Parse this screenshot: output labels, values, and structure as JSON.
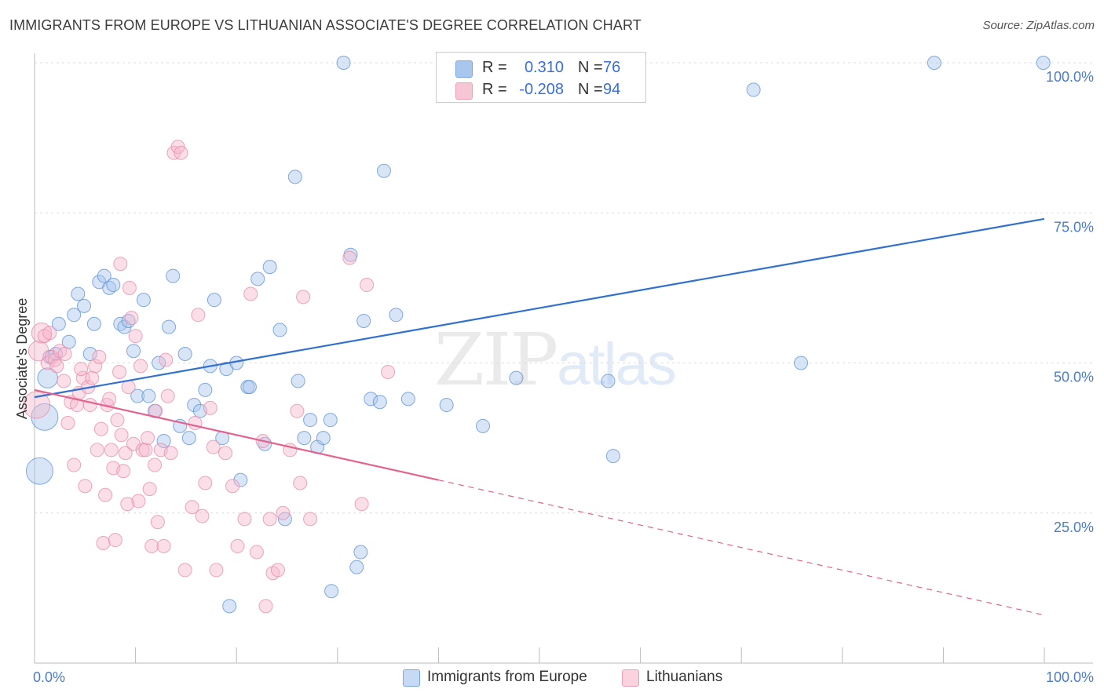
{
  "title": "IMMIGRANTS FROM EUROPE VS LITHUANIAN ASSOCIATE'S DEGREE CORRELATION CHART",
  "source": "Source: ZipAtlas.com",
  "watermark": {
    "zip": "ZIP",
    "atlas": "atlas"
  },
  "legend_top": [
    {
      "r_label": "R =",
      "r_value": "0.310",
      "n_label": "N =",
      "n_value": "76",
      "color": "#a8c6ee"
    },
    {
      "r_label": "R =",
      "r_value": "-0.208",
      "n_label": "N =",
      "n_value": "94",
      "color": "#f6b8cb"
    }
  ],
  "legend_bottom": [
    {
      "label": "Immigrants from Europe",
      "color": "#a8c6ee"
    },
    {
      "label": "Lithuanians",
      "color": "#f6b8cb"
    }
  ],
  "chart_data": {
    "type": "scatter",
    "title": "IMMIGRANTS FROM EUROPE VS LITHUANIAN ASSOCIATE'S DEGREE CORRELATION CHART",
    "xlabel": "",
    "ylabel": "Associate's Degree",
    "xlim": [
      0,
      100
    ],
    "ylim": [
      0,
      100
    ],
    "x_ticks": [
      "0.0%",
      "100.0%"
    ],
    "y_ticks": [
      {
        "value": 25,
        "label": "25.0%"
      },
      {
        "value": 50,
        "label": "50.0%"
      },
      {
        "value": 75,
        "label": "75.0%"
      },
      {
        "value": 100,
        "label": "100.0%"
      }
    ],
    "grid": true,
    "legend_position": "top-center",
    "series": [
      {
        "name": "Immigrants from Europe",
        "color": "#5b8fd6",
        "fill": "#a8c6ee",
        "trend": {
          "x": [
            0,
            100
          ],
          "y": [
            44.3,
            74.0
          ],
          "style": "solid",
          "color": "#3070cf"
        },
        "points": [
          [
            0.5,
            32,
            2
          ],
          [
            1.0,
            41,
            2
          ],
          [
            1.3,
            47.5,
            1.5
          ],
          [
            1.5,
            51,
            1
          ],
          [
            2.1,
            51.5,
            1
          ],
          [
            2.4,
            56.5,
            1
          ],
          [
            3.4,
            53.5,
            1
          ],
          [
            3.9,
            58,
            1
          ],
          [
            4.3,
            61.5,
            1
          ],
          [
            4.9,
            59.5,
            1
          ],
          [
            5.5,
            51.5,
            1
          ],
          [
            5.9,
            56.5,
            1
          ],
          [
            6.4,
            63.5,
            1
          ],
          [
            6.9,
            64.5,
            1
          ],
          [
            7.4,
            62.5,
            1
          ],
          [
            7.8,
            63,
            1
          ],
          [
            8.5,
            56.5,
            1
          ],
          [
            8.9,
            56,
            1
          ],
          [
            9.3,
            57,
            1
          ],
          [
            9.8,
            52,
            1
          ],
          [
            10.2,
            44.5,
            1
          ],
          [
            10.8,
            60.5,
            1
          ],
          [
            11.3,
            44.5,
            1
          ],
          [
            11.9,
            42,
            1
          ],
          [
            12.3,
            50,
            1
          ],
          [
            12.8,
            37,
            1
          ],
          [
            13.3,
            56,
            1
          ],
          [
            13.7,
            64.5,
            1
          ],
          [
            14.4,
            39.5,
            1
          ],
          [
            14.9,
            51.5,
            1
          ],
          [
            15.3,
            37.5,
            1
          ],
          [
            15.8,
            43,
            1
          ],
          [
            16.4,
            42,
            1
          ],
          [
            16.9,
            45.5,
            1
          ],
          [
            17.4,
            49.5,
            1
          ],
          [
            17.8,
            60.5,
            1
          ],
          [
            18.6,
            37.5,
            1
          ],
          [
            19.0,
            49,
            1
          ],
          [
            19.3,
            9.5,
            1
          ],
          [
            20.0,
            50,
            1
          ],
          [
            20.4,
            30.5,
            1
          ],
          [
            21.1,
            46,
            1
          ],
          [
            21.3,
            46,
            1
          ],
          [
            22.1,
            64,
            1
          ],
          [
            22.8,
            36.5,
            1
          ],
          [
            23.3,
            66,
            1
          ],
          [
            24.3,
            55.5,
            1
          ],
          [
            24.8,
            24,
            1
          ],
          [
            25.8,
            81,
            1
          ],
          [
            26.1,
            47,
            1
          ],
          [
            26.7,
            37.5,
            1
          ],
          [
            27.3,
            40.5,
            1
          ],
          [
            28.0,
            36,
            1
          ],
          [
            28.6,
            37.5,
            1
          ],
          [
            29.3,
            40.5,
            1
          ],
          [
            29.4,
            12,
            1
          ],
          [
            30.6,
            100,
            1
          ],
          [
            31.3,
            68,
            1
          ],
          [
            31.9,
            16,
            1
          ],
          [
            32.3,
            18.5,
            1
          ],
          [
            32.6,
            57,
            1
          ],
          [
            33.3,
            44,
            1
          ],
          [
            34.2,
            43.5,
            1
          ],
          [
            34.6,
            82,
            1
          ],
          [
            35.8,
            58,
            1
          ],
          [
            37.0,
            44,
            1
          ],
          [
            40.8,
            43,
            1
          ],
          [
            44.4,
            39.5,
            1
          ],
          [
            44.9,
            100,
            1
          ],
          [
            47.7,
            47.5,
            1
          ],
          [
            56.8,
            47,
            1
          ],
          [
            57.3,
            34.5,
            1
          ],
          [
            71.2,
            95.5,
            1
          ],
          [
            75.9,
            50,
            1
          ],
          [
            89.1,
            100,
            1
          ],
          [
            99.9,
            100,
            1
          ]
        ]
      },
      {
        "name": "Lithuanians",
        "color": "#e58aa9",
        "fill": "#f6b8cb",
        "trend": {
          "x": [
            0,
            40,
            100
          ],
          "y": [
            45.5,
            30.5,
            8.0
          ],
          "style": "solid-then-dashed",
          "color": "#e2638e"
        },
        "points": [
          [
            0.2,
            43,
            2
          ],
          [
            0.4,
            52,
            1.5
          ],
          [
            0.7,
            55,
            1.5
          ],
          [
            1.0,
            54.5,
            1
          ],
          [
            1.3,
            50,
            1
          ],
          [
            1.7,
            51,
            1
          ],
          [
            2.0,
            50.5,
            1
          ],
          [
            2.2,
            49.5,
            1
          ],
          [
            2.5,
            52,
            1
          ],
          [
            2.9,
            47,
            1
          ],
          [
            3.3,
            40,
            1
          ],
          [
            3.6,
            43.5,
            1
          ],
          [
            3.9,
            33,
            1
          ],
          [
            4.2,
            43,
            1
          ],
          [
            4.4,
            45,
            1
          ],
          [
            4.8,
            47.5,
            1
          ],
          [
            5.0,
            29.5,
            1
          ],
          [
            5.3,
            46,
            1
          ],
          [
            5.5,
            43,
            1
          ],
          [
            5.7,
            47.5,
            1
          ],
          [
            6.0,
            49.5,
            1
          ],
          [
            6.2,
            35.5,
            1
          ],
          [
            6.4,
            51,
            1
          ],
          [
            6.6,
            39,
            1
          ],
          [
            6.8,
            20,
            1
          ],
          [
            7.0,
            28,
            1
          ],
          [
            7.2,
            43,
            1
          ],
          [
            7.4,
            44,
            1
          ],
          [
            7.6,
            35.5,
            1
          ],
          [
            7.8,
            32.5,
            1
          ],
          [
            8.0,
            20.5,
            1
          ],
          [
            8.2,
            40.5,
            1
          ],
          [
            8.4,
            48.5,
            1
          ],
          [
            8.6,
            38,
            1
          ],
          [
            8.8,
            32,
            1
          ],
          [
            9.0,
            35,
            1
          ],
          [
            9.2,
            26.5,
            1
          ],
          [
            9.4,
            62.5,
            1
          ],
          [
            9.6,
            57.5,
            1
          ],
          [
            9.8,
            36.5,
            1
          ],
          [
            10.0,
            54.5,
            1
          ],
          [
            10.3,
            27,
            1
          ],
          [
            10.5,
            49.5,
            1
          ],
          [
            10.7,
            35.5,
            1
          ],
          [
            11.0,
            35.5,
            1
          ],
          [
            11.2,
            37.5,
            1
          ],
          [
            11.4,
            29,
            1
          ],
          [
            11.6,
            19.5,
            1
          ],
          [
            11.9,
            33,
            1
          ],
          [
            12.2,
            23.5,
            1
          ],
          [
            12.5,
            35.5,
            1
          ],
          [
            12.8,
            19.5,
            1
          ],
          [
            13.0,
            50.5,
            1
          ],
          [
            13.2,
            44.5,
            1
          ],
          [
            13.5,
            35,
            1
          ],
          [
            13.8,
            85,
            1
          ],
          [
            14.2,
            86,
            1
          ],
          [
            14.5,
            85,
            1
          ],
          [
            14.9,
            15.5,
            1
          ],
          [
            15.6,
            26,
            1
          ],
          [
            15.9,
            40,
            1
          ],
          [
            16.2,
            58,
            1
          ],
          [
            16.6,
            24.5,
            1
          ],
          [
            16.9,
            30,
            1
          ],
          [
            17.4,
            42.5,
            1
          ],
          [
            18.0,
            15.5,
            1
          ],
          [
            18.9,
            35,
            1
          ],
          [
            19.6,
            29.5,
            1
          ],
          [
            20.1,
            19.5,
            1
          ],
          [
            20.8,
            24,
            1
          ],
          [
            21.4,
            61.5,
            1
          ],
          [
            22.0,
            18.5,
            1
          ],
          [
            22.6,
            37,
            1
          ],
          [
            22.9,
            9.5,
            1
          ],
          [
            23.3,
            24,
            1
          ],
          [
            23.6,
            15,
            1
          ],
          [
            24.1,
            15.5,
            1
          ],
          [
            24.6,
            25,
            1
          ],
          [
            25.3,
            35.5,
            1
          ],
          [
            26.3,
            30,
            1
          ],
          [
            26.6,
            61,
            1
          ],
          [
            27.3,
            24,
            1
          ],
          [
            31.2,
            67.5,
            1
          ],
          [
            32.4,
            26.5,
            1
          ],
          [
            32.9,
            63,
            1
          ],
          [
            35.0,
            48.5,
            1
          ],
          [
            8.5,
            66.5,
            1
          ],
          [
            3.0,
            51.5,
            1
          ],
          [
            1.5,
            55,
            1
          ],
          [
            12.0,
            42,
            1
          ],
          [
            26.0,
            42,
            1
          ],
          [
            9.3,
            46,
            1
          ],
          [
            4.6,
            49,
            1
          ],
          [
            17.7,
            36,
            1
          ]
        ]
      }
    ]
  }
}
